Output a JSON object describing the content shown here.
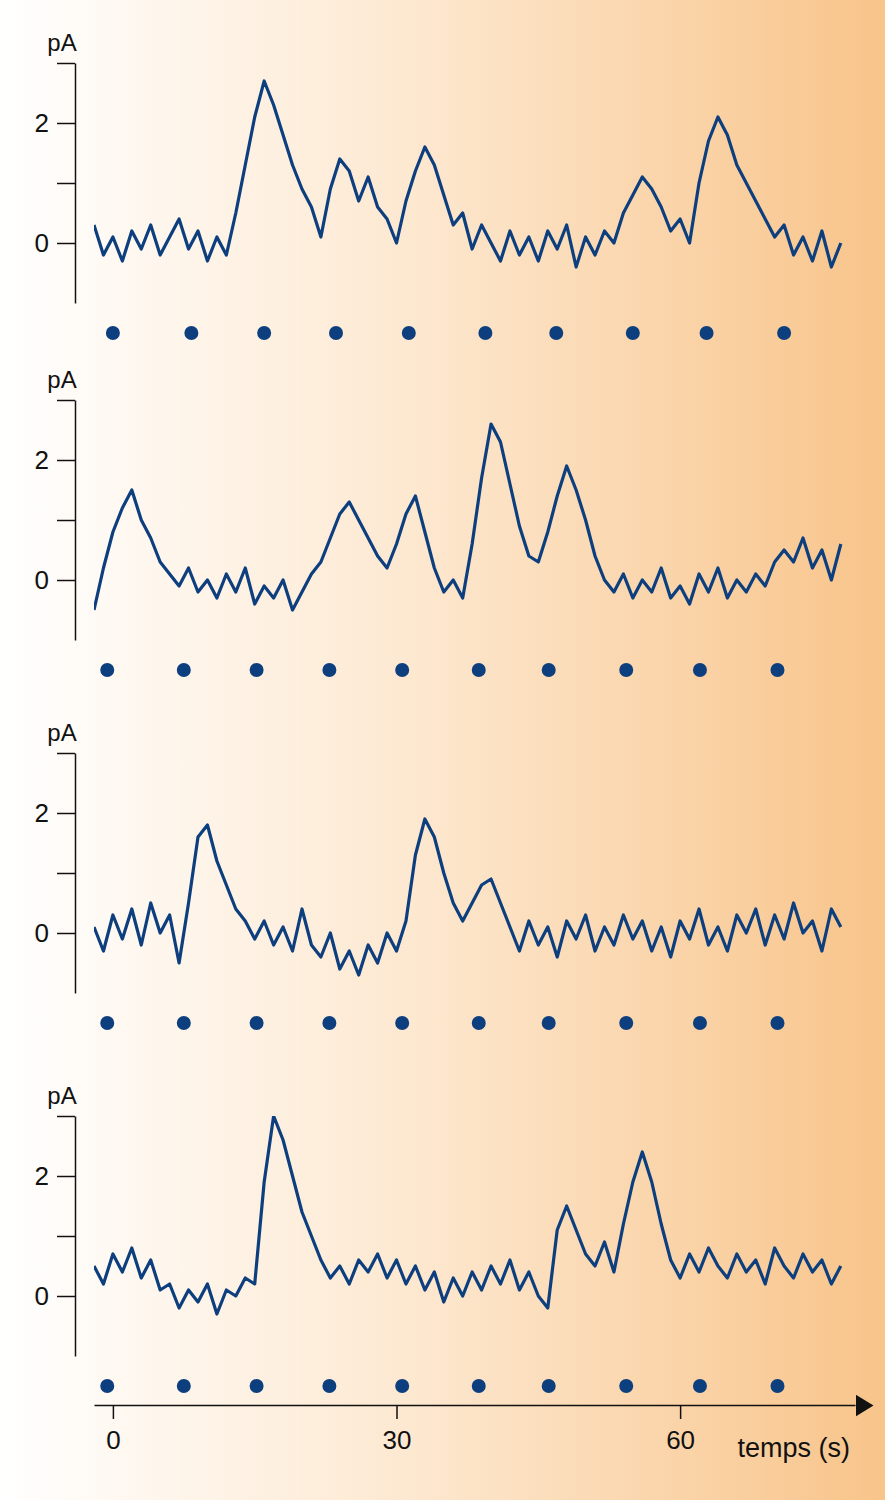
{
  "chart_data": [
    {
      "type": "line",
      "ylabel": "pA",
      "tick_labels": "y",
      "x": [
        -2,
        -1,
        0,
        1,
        2,
        3,
        4,
        5,
        6,
        7,
        8,
        9,
        10,
        11,
        12,
        13,
        14,
        15,
        16,
        17,
        18,
        19,
        20,
        21,
        22,
        23,
        24,
        25,
        26,
        27,
        28,
        29,
        30,
        31,
        32,
        33,
        34,
        35,
        36,
        37,
        38,
        39,
        40,
        41,
        42,
        43,
        44,
        45,
        46,
        47,
        48,
        49,
        50,
        51,
        52,
        53,
        54,
        55,
        56,
        57,
        58,
        59,
        60,
        61,
        62,
        63,
        64,
        65,
        66,
        67,
        68,
        69,
        70,
        71,
        72,
        73,
        74,
        75,
        76,
        77
      ],
      "series": [
        {
          "color": "#0d3f7f",
          "values": [
            0.3,
            -0.2,
            0.1,
            -0.3,
            0.2,
            -0.1,
            0.3,
            -0.2,
            0.1,
            0.4,
            -0.1,
            0.2,
            -0.3,
            0.1,
            -0.2,
            0.5,
            1.3,
            2.1,
            2.7,
            2.3,
            1.8,
            1.3,
            0.9,
            0.6,
            0.1,
            0.9,
            1.4,
            1.2,
            0.7,
            1.1,
            0.6,
            0.4,
            0.0,
            0.7,
            1.2,
            1.6,
            1.3,
            0.8,
            0.3,
            0.5,
            -0.1,
            0.3,
            0.0,
            -0.3,
            0.2,
            -0.2,
            0.1,
            -0.3,
            0.2,
            -0.1,
            0.3,
            -0.4,
            0.1,
            -0.2,
            0.2,
            0.0,
            0.5,
            0.8,
            1.1,
            0.9,
            0.6,
            0.2,
            0.4,
            0.0,
            1.0,
            1.7,
            2.1,
            1.8,
            1.3,
            1.0,
            0.7,
            0.4,
            0.1,
            0.3,
            -0.2,
            0.1,
            -0.3,
            0.2,
            -0.4,
            0.0
          ]
        }
      ],
      "stimuli": [
        0,
        8.3,
        16,
        23.6,
        31.3,
        39.4,
        46.9,
        55,
        62.8,
        71
      ],
      "xlim": [
        -2,
        78.5
      ],
      "ylim": [
        -1,
        3
      ],
      "yticks": [
        0,
        {
          "value": 1,
          "label": null
        },
        2,
        {
          "value": 3,
          "label": null
        }
      ]
    },
    {
      "type": "line",
      "ylabel": "pA",
      "tick_labels": "y",
      "x": [
        -2,
        -1,
        0,
        1,
        2,
        3,
        4,
        5,
        6,
        7,
        8,
        9,
        10,
        11,
        12,
        13,
        14,
        15,
        16,
        17,
        18,
        19,
        20,
        21,
        22,
        23,
        24,
        25,
        26,
        27,
        28,
        29,
        30,
        31,
        32,
        33,
        34,
        35,
        36,
        37,
        38,
        39,
        40,
        41,
        42,
        43,
        44,
        45,
        46,
        47,
        48,
        49,
        50,
        51,
        52,
        53,
        54,
        55,
        56,
        57,
        58,
        59,
        60,
        61,
        62,
        63,
        64,
        65,
        66,
        67,
        68,
        69,
        70,
        71,
        72,
        73,
        74,
        75,
        76,
        77
      ],
      "series": [
        {
          "color": "#0d3f7f",
          "values": [
            -0.5,
            0.2,
            0.8,
            1.2,
            1.5,
            1.0,
            0.7,
            0.3,
            0.1,
            -0.1,
            0.2,
            -0.2,
            0.0,
            -0.3,
            0.1,
            -0.2,
            0.2,
            -0.4,
            -0.1,
            -0.3,
            0.0,
            -0.5,
            -0.2,
            0.1,
            0.3,
            0.7,
            1.1,
            1.3,
            1.0,
            0.7,
            0.4,
            0.2,
            0.6,
            1.1,
            1.4,
            0.8,
            0.2,
            -0.2,
            0.0,
            -0.3,
            0.6,
            1.7,
            2.6,
            2.3,
            1.6,
            0.9,
            0.4,
            0.3,
            0.8,
            1.4,
            1.9,
            1.5,
            1.0,
            0.4,
            0.0,
            -0.2,
            0.1,
            -0.3,
            0.0,
            -0.2,
            0.2,
            -0.3,
            -0.1,
            -0.4,
            0.1,
            -0.2,
            0.2,
            -0.3,
            0.0,
            -0.2,
            0.1,
            -0.1,
            0.3,
            0.5,
            0.3,
            0.7,
            0.2,
            0.5,
            0.0,
            0.6
          ]
        }
      ],
      "stimuli": [
        -0.6,
        7.5,
        15.2,
        22.9,
        30.6,
        38.7,
        46.1,
        54.3,
        62.1,
        70.3
      ],
      "xlim": [
        -2,
        78.5
      ],
      "ylim": [
        -1,
        3
      ],
      "yticks": [
        0,
        {
          "value": 1,
          "label": null
        },
        2,
        {
          "value": 3,
          "label": null
        }
      ]
    },
    {
      "type": "line",
      "ylabel": "pA",
      "tick_labels": "y",
      "x": [
        -2,
        -1,
        0,
        1,
        2,
        3,
        4,
        5,
        6,
        7,
        8,
        9,
        10,
        11,
        12,
        13,
        14,
        15,
        16,
        17,
        18,
        19,
        20,
        21,
        22,
        23,
        24,
        25,
        26,
        27,
        28,
        29,
        30,
        31,
        32,
        33,
        34,
        35,
        36,
        37,
        38,
        39,
        40,
        41,
        42,
        43,
        44,
        45,
        46,
        47,
        48,
        49,
        50,
        51,
        52,
        53,
        54,
        55,
        56,
        57,
        58,
        59,
        60,
        61,
        62,
        63,
        64,
        65,
        66,
        67,
        68,
        69,
        70,
        71,
        72,
        73,
        74,
        75,
        76,
        77
      ],
      "series": [
        {
          "color": "#0d3f7f",
          "values": [
            0.1,
            -0.3,
            0.3,
            -0.1,
            0.4,
            -0.2,
            0.5,
            0.0,
            0.3,
            -0.5,
            0.5,
            1.6,
            1.8,
            1.2,
            0.8,
            0.4,
            0.2,
            -0.1,
            0.2,
            -0.2,
            0.1,
            -0.3,
            0.4,
            -0.2,
            -0.4,
            0.0,
            -0.6,
            -0.3,
            -0.7,
            -0.2,
            -0.5,
            0.0,
            -0.3,
            0.2,
            1.3,
            1.9,
            1.6,
            1.0,
            0.5,
            0.2,
            0.5,
            0.8,
            0.9,
            0.5,
            0.1,
            -0.3,
            0.2,
            -0.2,
            0.1,
            -0.4,
            0.2,
            -0.1,
            0.3,
            -0.3,
            0.1,
            -0.2,
            0.3,
            -0.1,
            0.2,
            -0.3,
            0.1,
            -0.4,
            0.2,
            -0.1,
            0.4,
            -0.2,
            0.1,
            -0.3,
            0.3,
            0.0,
            0.4,
            -0.2,
            0.3,
            -0.1,
            0.5,
            0.0,
            0.2,
            -0.3,
            0.4,
            0.1
          ]
        }
      ],
      "stimuli": [
        -0.6,
        7.5,
        15.2,
        22.9,
        30.6,
        38.7,
        46.1,
        54.3,
        62.1,
        70.3
      ],
      "xlim": [
        -2,
        78.5
      ],
      "ylim": [
        -1,
        3
      ],
      "yticks": [
        0,
        {
          "value": 1,
          "label": null
        },
        2,
        {
          "value": 3,
          "label": null
        }
      ]
    },
    {
      "type": "line",
      "ylabel": "pA",
      "xlabel": "temps (s)",
      "x": [
        -2,
        -1,
        0,
        1,
        2,
        3,
        4,
        5,
        6,
        7,
        8,
        9,
        10,
        11,
        12,
        13,
        14,
        15,
        16,
        17,
        18,
        19,
        20,
        21,
        22,
        23,
        24,
        25,
        26,
        27,
        28,
        29,
        30,
        31,
        32,
        33,
        34,
        35,
        36,
        37,
        38,
        39,
        40,
        41,
        42,
        43,
        44,
        45,
        46,
        47,
        48,
        49,
        50,
        51,
        52,
        53,
        54,
        55,
        56,
        57,
        58,
        59,
        60,
        61,
        62,
        63,
        64,
        65,
        66,
        67,
        68,
        69,
        70,
        71,
        72,
        73,
        74,
        75,
        76,
        77
      ],
      "series": [
        {
          "color": "#0d3f7f",
          "values": [
            0.5,
            0.2,
            0.7,
            0.4,
            0.8,
            0.3,
            0.6,
            0.1,
            0.2,
            -0.2,
            0.1,
            -0.1,
            0.2,
            -0.3,
            0.1,
            0.0,
            0.3,
            0.2,
            1.9,
            3.0,
            2.6,
            2.0,
            1.4,
            1.0,
            0.6,
            0.3,
            0.5,
            0.2,
            0.6,
            0.4,
            0.7,
            0.3,
            0.6,
            0.2,
            0.5,
            0.1,
            0.4,
            -0.1,
            0.3,
            0.0,
            0.4,
            0.1,
            0.5,
            0.2,
            0.6,
            0.1,
            0.4,
            0.0,
            -0.2,
            1.1,
            1.5,
            1.1,
            0.7,
            0.5,
            0.9,
            0.4,
            1.2,
            1.9,
            2.4,
            1.9,
            1.2,
            0.6,
            0.3,
            0.7,
            0.4,
            0.8,
            0.5,
            0.3,
            0.7,
            0.4,
            0.6,
            0.2,
            0.8,
            0.5,
            0.3,
            0.7,
            0.4,
            0.6,
            0.2,
            0.5
          ]
        }
      ],
      "stimuli": [
        -0.6,
        7.5,
        15.2,
        22.9,
        30.6,
        38.7,
        46.1,
        54.3,
        62.1,
        70.3
      ],
      "xlim": [
        -2,
        78.5
      ],
      "xticks": [
        0,
        30,
        60
      ],
      "ylim": [
        -1,
        3
      ],
      "yticks": [
        0,
        {
          "value": 1,
          "label": null
        },
        2,
        {
          "value": 3,
          "label": null
        }
      ]
    }
  ]
}
